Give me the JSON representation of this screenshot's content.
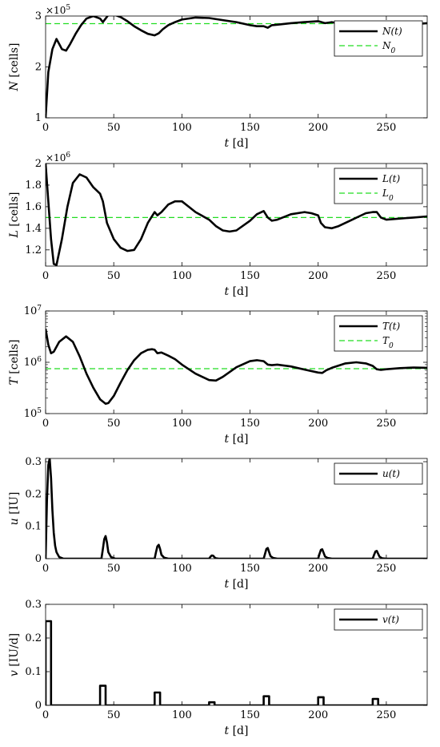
{
  "chart_data": [
    {
      "type": "line",
      "xlabel": "t [d]",
      "ylabel": "N [cells]",
      "xlim": [
        0,
        280
      ],
      "ylim": [
        1,
        3
      ],
      "scale": "linear",
      "multiplier": "×10^5",
      "xticks": [
        0,
        50,
        100,
        150,
        200,
        250
      ],
      "yticks": [
        1,
        2,
        3
      ],
      "legend_position": "top-right",
      "reference": {
        "name": "N_0",
        "value": 2.85,
        "color": "#22dd22",
        "style": "dashed"
      },
      "series": [
        {
          "name": "N(t)",
          "color": "#000000",
          "x": [
            0,
            2,
            5,
            8,
            10,
            12,
            15,
            18,
            22,
            26,
            30,
            35,
            40,
            42,
            44,
            46,
            50,
            55,
            60,
            65,
            70,
            75,
            80,
            83,
            86,
            90,
            95,
            100,
            110,
            120,
            130,
            140,
            150,
            155,
            160,
            163,
            166,
            170,
            180,
            190,
            200,
            205,
            210,
            215,
            220,
            225,
            230,
            235,
            240,
            245,
            250,
            260,
            270,
            280
          ],
          "y": [
            1.0,
            1.9,
            2.35,
            2.55,
            2.45,
            2.35,
            2.32,
            2.45,
            2.65,
            2.82,
            2.95,
            3.0,
            2.95,
            2.88,
            2.95,
            3.02,
            3.03,
            2.98,
            2.9,
            2.8,
            2.72,
            2.65,
            2.62,
            2.66,
            2.74,
            2.82,
            2.88,
            2.93,
            2.97,
            2.96,
            2.92,
            2.88,
            2.82,
            2.8,
            2.8,
            2.77,
            2.82,
            2.83,
            2.86,
            2.88,
            2.9,
            2.86,
            2.88,
            2.85,
            2.82,
            2.8,
            2.8,
            2.82,
            2.85,
            2.85,
            2.84,
            2.82,
            2.84,
            2.86
          ]
        }
      ]
    },
    {
      "type": "line",
      "xlabel": "t [d]",
      "ylabel": "L [cells]",
      "xlim": [
        0,
        280
      ],
      "ylim": [
        1.05,
        2.0
      ],
      "scale": "linear",
      "multiplier": "×10^6",
      "xticks": [
        0,
        50,
        100,
        150,
        200,
        250
      ],
      "yticks": [
        1.2,
        1.4,
        1.6,
        1.8,
        2
      ],
      "legend_position": "top-right",
      "reference": {
        "name": "L_0",
        "value": 1.5,
        "color": "#22dd22",
        "style": "dashed"
      },
      "series": [
        {
          "name": "L(t)",
          "color": "#000000",
          "x": [
            0,
            2,
            4,
            6,
            8,
            12,
            16,
            20,
            25,
            30,
            35,
            40,
            42,
            45,
            50,
            55,
            60,
            65,
            70,
            75,
            80,
            82,
            85,
            90,
            95,
            100,
            105,
            110,
            120,
            125,
            130,
            135,
            140,
            150,
            155,
            160,
            163,
            166,
            170,
            180,
            190,
            195,
            200,
            202,
            205,
            210,
            215,
            220,
            225,
            230,
            235,
            240,
            243,
            246,
            250,
            260,
            270,
            280
          ],
          "y": [
            2.0,
            1.65,
            1.3,
            1.07,
            1.06,
            1.3,
            1.6,
            1.82,
            1.9,
            1.87,
            1.78,
            1.72,
            1.65,
            1.45,
            1.3,
            1.22,
            1.19,
            1.2,
            1.3,
            1.45,
            1.55,
            1.52,
            1.55,
            1.62,
            1.65,
            1.65,
            1.6,
            1.55,
            1.48,
            1.42,
            1.38,
            1.37,
            1.38,
            1.47,
            1.53,
            1.56,
            1.5,
            1.47,
            1.48,
            1.53,
            1.55,
            1.54,
            1.52,
            1.45,
            1.41,
            1.4,
            1.42,
            1.45,
            1.48,
            1.51,
            1.54,
            1.55,
            1.55,
            1.5,
            1.48,
            1.49,
            1.5,
            1.51
          ]
        }
      ]
    },
    {
      "type": "line",
      "xlabel": "t [d]",
      "ylabel": "T [cells]",
      "xlim": [
        0,
        280
      ],
      "ylim": [
        100000,
        10000000
      ],
      "scale": "log",
      "xticks": [
        0,
        50,
        100,
        150,
        200,
        250
      ],
      "yticks": [
        100000,
        1000000,
        10000000
      ],
      "ytick_labels": [
        "10^5",
        "10^6",
        "10^7"
      ],
      "legend_position": "top-right",
      "reference": {
        "name": "T_0",
        "value": 750000,
        "color": "#22dd22",
        "style": "dashed"
      },
      "series": [
        {
          "name": "T(t)",
          "color": "#000000",
          "x": [
            0,
            2,
            4,
            6,
            10,
            15,
            20,
            25,
            30,
            35,
            40,
            44,
            46,
            50,
            55,
            60,
            65,
            70,
            75,
            78,
            80,
            82,
            85,
            90,
            95,
            100,
            110,
            120,
            125,
            130,
            140,
            150,
            155,
            160,
            163,
            166,
            170,
            180,
            190,
            200,
            203,
            206,
            210,
            220,
            228,
            235,
            240,
            243,
            246,
            250,
            260,
            270,
            280
          ],
          "y": [
            4500000,
            2200000,
            1500000,
            1600000,
            2500000,
            3200000,
            2500000,
            1300000,
            600000,
            320000,
            190000,
            155000,
            160000,
            220000,
            400000,
            700000,
            1100000,
            1500000,
            1750000,
            1800000,
            1750000,
            1500000,
            1550000,
            1350000,
            1150000,
            900000,
            600000,
            450000,
            440000,
            520000,
            800000,
            1050000,
            1100000,
            1050000,
            900000,
            880000,
            900000,
            830000,
            720000,
            630000,
            620000,
            700000,
            780000,
            950000,
            1000000,
            950000,
            850000,
            730000,
            710000,
            730000,
            770000,
            790000,
            780000
          ]
        }
      ]
    },
    {
      "type": "line",
      "xlabel": "t [d]",
      "ylabel": "u [IU]",
      "xlim": [
        0,
        280
      ],
      "ylim": [
        0,
        0.31
      ],
      "scale": "linear",
      "xticks": [
        0,
        50,
        100,
        150,
        200,
        250
      ],
      "yticks": [
        0,
        0.1,
        0.2,
        0.3
      ],
      "legend_position": "top-right",
      "series": [
        {
          "name": "u(t)",
          "color": "#000000",
          "x": [
            0,
            1,
            2,
            3,
            4,
            5,
            6,
            7,
            8,
            10,
            13,
            41,
            42,
            43,
            44,
            45,
            46,
            48,
            51,
            80,
            81,
            82,
            83,
            84,
            85,
            87,
            90,
            120,
            121,
            122,
            123,
            124,
            125,
            127,
            160,
            161,
            162,
            163,
            164,
            165,
            167,
            170,
            200,
            201,
            202,
            203,
            204,
            205,
            207,
            210,
            240,
            241,
            242,
            243,
            244,
            245,
            247,
            250,
            280
          ],
          "y": [
            0,
            0.18,
            0.29,
            0.31,
            0.25,
            0.15,
            0.08,
            0.04,
            0.02,
            0.005,
            0,
            0,
            0.03,
            0.06,
            0.07,
            0.05,
            0.02,
            0.005,
            0,
            0,
            0.02,
            0.038,
            0.043,
            0.03,
            0.012,
            0.003,
            0,
            0,
            0.006,
            0.01,
            0.009,
            0.004,
            0.001,
            0,
            0,
            0.015,
            0.03,
            0.033,
            0.02,
            0.008,
            0.002,
            0,
            0,
            0.015,
            0.027,
            0.029,
            0.018,
            0.007,
            0.002,
            0,
            0,
            0.012,
            0.022,
            0.024,
            0.015,
            0.006,
            0.001,
            0,
            0
          ]
        }
      ]
    },
    {
      "type": "line",
      "xlabel": "t [d]",
      "ylabel": "v [IU/d]",
      "xlim": [
        0,
        280
      ],
      "ylim": [
        0,
        0.3
      ],
      "scale": "linear",
      "xticks": [
        0,
        50,
        100,
        150,
        200,
        250
      ],
      "yticks": [
        0,
        0.1,
        0.2,
        0.3
      ],
      "legend_position": "top-right",
      "series": [
        {
          "name": "v(t)",
          "color": "#000000",
          "x": [
            0,
            0,
            4,
            4,
            40,
            40,
            44,
            44,
            80,
            80,
            84,
            84,
            120,
            120,
            124,
            124,
            160,
            160,
            164,
            164,
            200,
            200,
            204,
            204,
            240,
            240,
            244,
            244,
            280
          ],
          "y": [
            0,
            0.25,
            0.25,
            0,
            0,
            0.058,
            0.058,
            0,
            0,
            0.038,
            0.038,
            0,
            0,
            0.009,
            0.009,
            0,
            0,
            0.027,
            0.027,
            0,
            0,
            0.024,
            0.024,
            0,
            0,
            0.019,
            0.019,
            0,
            0
          ]
        }
      ]
    }
  ]
}
